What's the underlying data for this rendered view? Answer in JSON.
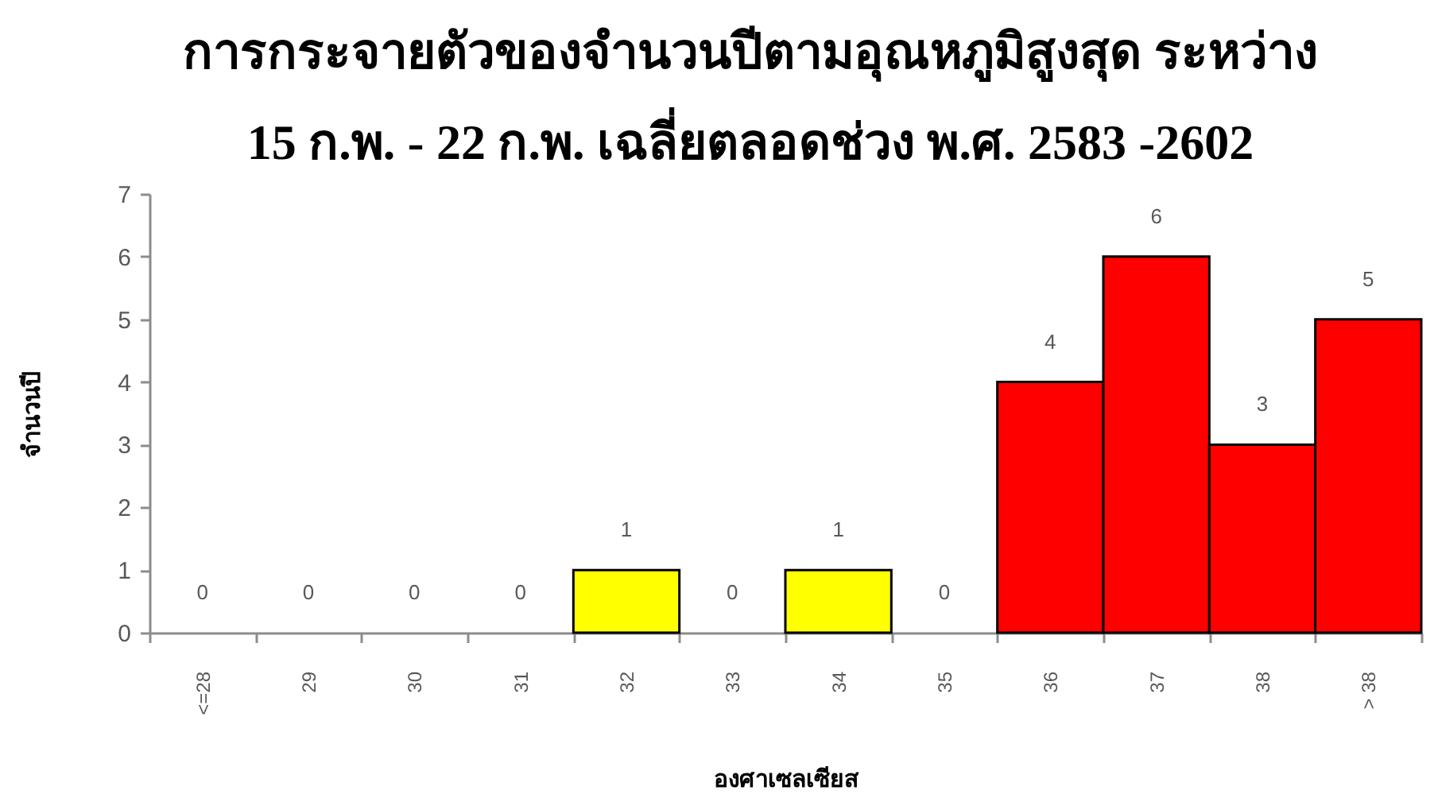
{
  "chart_data": {
    "type": "bar",
    "title": "การกระจายตัวของจำนวนปีตามอุณหภูมิสูงสุด ระหว่าง\n15 ก.พ. - 22 ก.พ. เฉลี่ยตลอดช่วง พ.ศ. 2583 -2602",
    "xlabel": "องศาเซลเซียส",
    "ylabel": "จำนวนปี",
    "categories": [
      "<=28",
      "29",
      "30",
      "31",
      "32",
      "33",
      "34",
      "35",
      "36",
      "37",
      "38",
      "> 38"
    ],
    "values": [
      0,
      0,
      0,
      0,
      1,
      0,
      1,
      0,
      4,
      6,
      3,
      5
    ],
    "colors": [
      null,
      null,
      null,
      null,
      "#ffff00",
      null,
      "#ffff00",
      null,
      "#ff0000",
      "#ff0000",
      "#ff0000",
      "#ff0000"
    ],
    "ylim": [
      0,
      7
    ],
    "yticks": [
      0,
      1,
      2,
      3,
      4,
      5,
      6,
      7
    ],
    "data_labels": true
  }
}
